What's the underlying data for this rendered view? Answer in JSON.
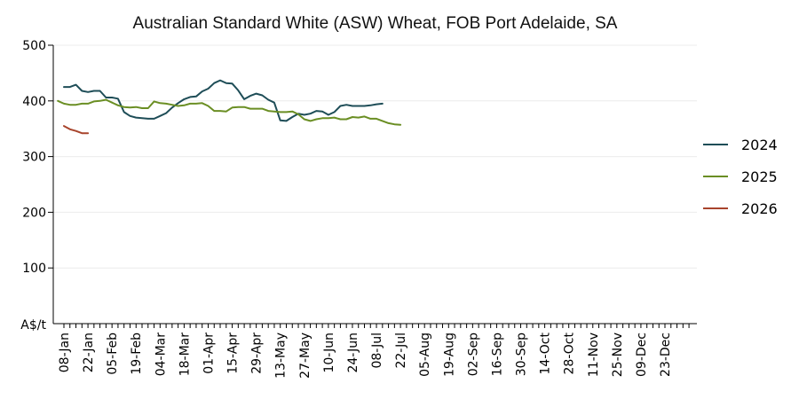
{
  "chart_data": {
    "type": "line",
    "title": "Australian Standard White (ASW) Wheat, FOB Port Adelaide, SA",
    "ylabel": "A$/t",
    "ylim": [
      0,
      500
    ],
    "yticks": [
      100,
      200,
      300,
      400,
      500
    ],
    "grid": "horizontal",
    "legend_position": "right",
    "x_tick_labels": [
      "08-Jan",
      "22-Jan",
      "05-Feb",
      "19-Feb",
      "04-Mar",
      "18-Mar",
      "01-Apr",
      "15-Apr",
      "29-Apr",
      "13-May",
      "27-May",
      "10-Jun",
      "24-Jun",
      "08-Jul",
      "22-Jul",
      "05-Aug",
      "19-Aug",
      "02-Sep",
      "16-Sep",
      "30-Sep",
      "14-Oct",
      "28-Oct",
      "11-Nov",
      "25-Nov",
      "09-Dec",
      "23-Dec"
    ],
    "series": [
      {
        "name": "2024",
        "color": "#1e4d57",
        "start_week": 0,
        "values": [
          425,
          425,
          429,
          418,
          416,
          418,
          418,
          406,
          406,
          404,
          380,
          373,
          370,
          369,
          368,
          368,
          373,
          378,
          388,
          396,
          403,
          407,
          408,
          417,
          422,
          432,
          437,
          432,
          431,
          419,
          403,
          409,
          413,
          410,
          402,
          397,
          365,
          364,
          371,
          377,
          375,
          377,
          382,
          381,
          375,
          380,
          391,
          393,
          391,
          391,
          391,
          392,
          394,
          395
        ]
      },
      {
        "name": "2025",
        "color": "#6a8e23",
        "start_week": -1,
        "values": [
          400,
          395,
          393,
          393,
          395,
          395,
          399,
          400,
          402,
          397,
          392,
          389,
          388,
          389,
          387,
          387,
          399,
          396,
          395,
          393,
          391,
          392,
          395,
          395,
          396,
          391,
          382,
          382,
          381,
          388,
          389,
          389,
          386,
          386,
          386,
          382,
          381,
          380,
          380,
          381,
          376,
          367,
          364,
          367,
          369,
          369,
          370,
          367,
          367,
          371,
          370,
          372,
          368,
          368,
          364,
          360,
          358,
          357
        ]
      },
      {
        "name": "2026",
        "color": "#a8442c",
        "start_week": 0,
        "values": [
          355,
          349,
          346,
          342,
          342
        ]
      }
    ]
  }
}
